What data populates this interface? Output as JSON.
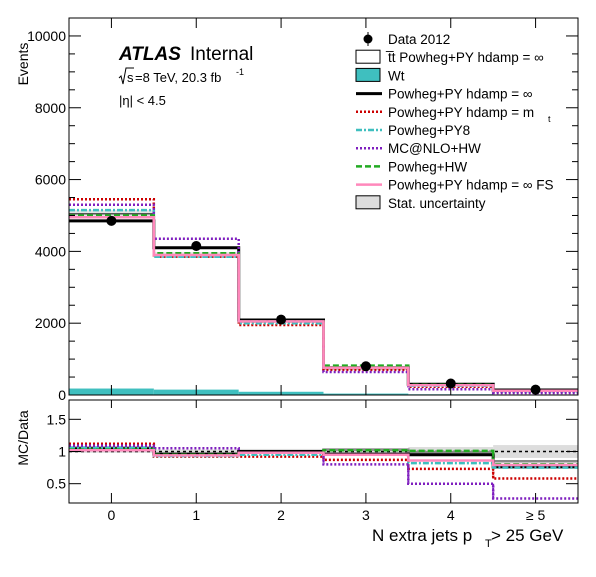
{
  "chart_data": [
    {
      "type": "line",
      "panel": "main",
      "categories": [
        "0",
        "1",
        "2",
        "3",
        "4",
        "≥ 5"
      ],
      "ylabel": "Events",
      "ylim": [
        0,
        10500
      ],
      "yticks": [
        0,
        2000,
        4000,
        6000,
        8000,
        10000
      ],
      "atlas_label": "ATLAS",
      "atlas_sub": "Internal",
      "energy_sqrt": "s",
      "energy_text": "=8 TeV, 20.3 fb",
      "energy_sup": "-1",
      "eta_text": "|η| < 4.5",
      "data": {
        "name": "Data 2012",
        "values": [
          4850,
          4150,
          2100,
          800,
          320,
          150
        ]
      },
      "series": [
        {
          "name": "t̅t Powheg+PY hdamp = ∞",
          "kind": "stack_top",
          "style": "solid",
          "color": "#555555",
          "values": [
            5050,
            3900,
            2050,
            770,
            290,
            125
          ]
        },
        {
          "name": "Wt",
          "kind": "fill",
          "color": "#3fbfbf",
          "values": [
            180,
            150,
            90,
            40,
            20,
            10
          ]
        },
        {
          "name": "Powheg+PY hdamp = ∞",
          "kind": "line",
          "style": "solid",
          "color": "#000000",
          "values": [
            4850,
            4100,
            2090,
            760,
            300,
            140
          ]
        },
        {
          "name": "Powheg+PY hdamp = m",
          "name_sub": "t",
          "kind": "line",
          "style": "dot",
          "color": "#cc0000",
          "values": [
            5450,
            3850,
            1950,
            700,
            230,
            95
          ]
        },
        {
          "name": "Powheg+PY8",
          "kind": "line",
          "style": "dashdot",
          "color": "#3fbfbf",
          "values": [
            5150,
            3850,
            2000,
            760,
            260,
            110
          ]
        },
        {
          "name": "MC@NLO+HW",
          "kind": "line",
          "style": "dot",
          "color": "#7f1fbf",
          "values": [
            5300,
            4350,
            2050,
            640,
            160,
            55
          ]
        },
        {
          "name": "Powheg+HW",
          "kind": "line",
          "style": "dash",
          "color": "#22aa22",
          "values": [
            5000,
            3950,
            2050,
            820,
            280,
            120
          ]
        },
        {
          "name": "Powheg+PY hdamp = ∞ FS",
          "kind": "line",
          "style": "solid",
          "color": "#ff88bb",
          "values": [
            4950,
            3900,
            2050,
            760,
            270,
            118
          ]
        }
      ],
      "uncertainty": {
        "name": "Stat. uncertainty",
        "color": "#dddddd"
      }
    },
    {
      "type": "line",
      "panel": "ratio",
      "categories": [
        "0",
        "1",
        "2",
        "3",
        "4",
        "≥ 5"
      ],
      "ylabel": "MC/Data",
      "xlabel": "N extra jets p",
      "xlabel_sub": "T",
      "xlabel_tail": " > 25 GeV",
      "ylim": [
        0.2,
        1.8
      ],
      "yticks": [
        0.5,
        1,
        1.5
      ],
      "reference": 1,
      "stat_band": [
        0.02,
        0.03,
        0.04,
        0.05,
        0.07,
        0.1
      ],
      "series": [
        {
          "name": "t̅t Powheg+PY hdamp = ∞",
          "style": "solid",
          "color": "#888888",
          "values": [
            1.06,
            0.95,
            0.99,
            1.03,
            0.99,
            0.85
          ]
        },
        {
          "name": "Powheg+PY hdamp = ∞",
          "style": "solid",
          "color": "#000000",
          "values": [
            1.04,
            0.96,
            1.0,
            0.96,
            0.95,
            0.76
          ]
        },
        {
          "name": "Powheg+PY hdamp = m",
          "style": "dot",
          "color": "#cc0000",
          "values": [
            1.12,
            0.92,
            0.92,
            0.87,
            0.73,
            0.58
          ]
        },
        {
          "name": "Powheg+PY8",
          "style": "dashdot",
          "color": "#3fbfbf",
          "values": [
            1.06,
            0.93,
            0.95,
            0.95,
            0.82,
            0.75
          ]
        },
        {
          "name": "MC@NLO+HW",
          "style": "dot",
          "color": "#7f1fbf",
          "values": [
            1.09,
            1.05,
            0.98,
            0.8,
            0.5,
            0.27
          ]
        },
        {
          "name": "Powheg+HW",
          "style": "dash",
          "color": "#22aa22",
          "values": [
            1.03,
            0.95,
            0.98,
            1.02,
            1.01,
            0.8
          ]
        },
        {
          "name": "Powheg+PY hdamp = ∞ FS",
          "style": "solid",
          "color": "#ff88bb",
          "values": [
            1.02,
            0.94,
            0.98,
            0.95,
            0.86,
            0.79
          ]
        }
      ]
    }
  ]
}
